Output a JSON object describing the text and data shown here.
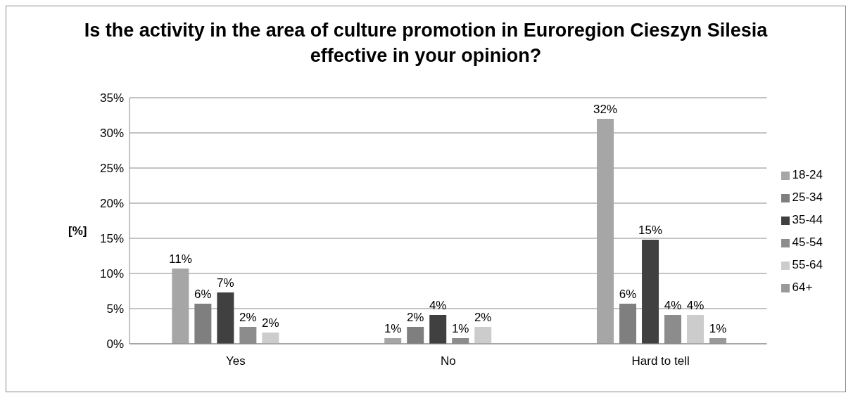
{
  "chart_data": {
    "type": "bar",
    "title": "Is the activity in the area of culture promotion in Euroregion Cieszyn Silesia effective in your opinion?",
    "ylabel": "[%]",
    "categories": [
      "Yes",
      "No",
      "Hard to tell"
    ],
    "series": [
      {
        "name": "18-24",
        "color": "#a6a6a6",
        "values": [
          10.7,
          0.8,
          32.0
        ],
        "value_labels": [
          "11%",
          "1%",
          "32%"
        ]
      },
      {
        "name": "25-34",
        "color": "#7f7f7f",
        "values": [
          5.7,
          2.4,
          5.7
        ],
        "value_labels": [
          "6%",
          "2%",
          "6%"
        ]
      },
      {
        "name": "35-44",
        "color": "#404040",
        "values": [
          7.3,
          4.1,
          14.8
        ],
        "value_labels": [
          "7%",
          "4%",
          "15%"
        ]
      },
      {
        "name": "45-54",
        "color": "#8c8c8c",
        "values": [
          2.4,
          0.8,
          4.1
        ],
        "value_labels": [
          "2%",
          "1%",
          "4%"
        ]
      },
      {
        "name": "55-64",
        "color": "#cccccc",
        "values": [
          1.6,
          2.4,
          4.1
        ],
        "value_labels": [
          "2%",
          "2%",
          "4%"
        ]
      },
      {
        "name": "64+",
        "color": "#999999",
        "values": [
          null,
          null,
          0.8
        ],
        "value_labels": [
          null,
          null,
          "1%"
        ]
      }
    ],
    "ylim": [
      0,
      35
    ],
    "yticks": [
      {
        "value": 0,
        "label": "0%"
      },
      {
        "value": 5,
        "label": "5%"
      },
      {
        "value": 10,
        "label": "10%"
      },
      {
        "value": 15,
        "label": "15%"
      },
      {
        "value": 20,
        "label": "20%"
      },
      {
        "value": 25,
        "label": "25%"
      },
      {
        "value": 30,
        "label": "30%"
      },
      {
        "value": 35,
        "label": "35%"
      }
    ],
    "grid": "y",
    "legend": "right"
  }
}
